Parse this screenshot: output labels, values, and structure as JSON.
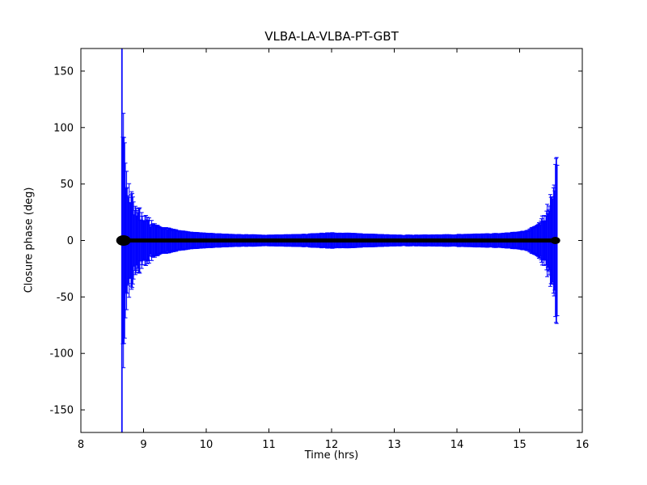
{
  "chart_data": {
    "type": "errorbar",
    "title": "VLBA-LA-VLBA-PT-GBT",
    "xlabel": "Time (hrs)",
    "ylabel": "Closure phase (deg)",
    "xlim": [
      8,
      16
    ],
    "ylim": [
      -170,
      170
    ],
    "xticks": [
      8,
      9,
      10,
      11,
      12,
      13,
      14,
      15,
      16
    ],
    "yticks": [
      -150,
      -100,
      -50,
      0,
      50,
      100,
      150
    ],
    "grid": false,
    "legend": null,
    "series": [
      {
        "name": "closure-phase",
        "errorbar_color": "#0000ff",
        "marker_color": "#000000",
        "mean_value": 0,
        "t_start": 8.65,
        "t_end": 15.6,
        "sample_step_hrs": 0.01,
        "error_envelope": [
          [
            8.65,
            170
          ],
          [
            8.66,
            150
          ],
          [
            8.67,
            120
          ],
          [
            8.68,
            95
          ],
          [
            8.7,
            70
          ],
          [
            8.72,
            58
          ],
          [
            8.75,
            46
          ],
          [
            8.8,
            36
          ],
          [
            8.85,
            30
          ],
          [
            8.9,
            26
          ],
          [
            9.0,
            20
          ],
          [
            9.1,
            16
          ],
          [
            9.25,
            12
          ],
          [
            9.5,
            9
          ],
          [
            9.75,
            7
          ],
          [
            10.0,
            6
          ],
          [
            10.5,
            5
          ],
          [
            11.0,
            4.5
          ],
          [
            11.5,
            5
          ],
          [
            12.0,
            6.5
          ],
          [
            12.3,
            6
          ],
          [
            12.5,
            5.5
          ],
          [
            13.0,
            4.5
          ],
          [
            13.5,
            4.5
          ],
          [
            14.0,
            5
          ],
          [
            14.5,
            5.5
          ],
          [
            15.0,
            7
          ],
          [
            15.15,
            9
          ],
          [
            15.3,
            14
          ],
          [
            15.4,
            20
          ],
          [
            15.47,
            30
          ],
          [
            15.52,
            42
          ],
          [
            15.56,
            55
          ],
          [
            15.6,
            65
          ]
        ]
      }
    ]
  }
}
